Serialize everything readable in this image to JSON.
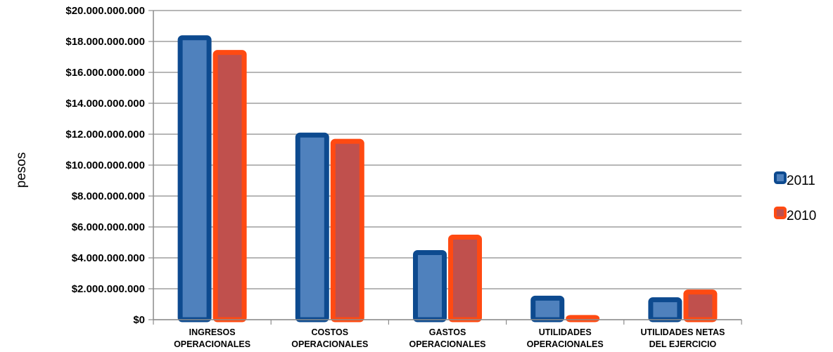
{
  "chart_data": {
    "type": "bar",
    "title": "",
    "xlabel": "",
    "ylabel": "pesos",
    "ylim": [
      0,
      20000000000
    ],
    "y_ticks": [
      "$0",
      "$2.000.000.000",
      "$4.000.000.000",
      "$6.000.000.000",
      "$8.000.000.000",
      "$10.000.000.000",
      "$12.000.000.000",
      "$14.000.000.000",
      "$16.000.000.000",
      "$18.000.000.000",
      "$20.000.000.000"
    ],
    "categories": [
      [
        "INGRESOS",
        "OPERACIONALES"
      ],
      [
        "COSTOS",
        "OPERACIONALES"
      ],
      [
        "GASTOS",
        "OPERACIONALES"
      ],
      [
        "UTILIDADES",
        "OPERACIONALES"
      ],
      [
        "UTILIDADES NETAS",
        "DEL EJERCICIO"
      ]
    ],
    "series": [
      {
        "name": "2011",
        "fill": "#4f81bd",
        "border": "#0d4a8f",
        "values": [
          18400000000,
          12100000000,
          4500000000,
          1550000000,
          1450000000
        ]
      },
      {
        "name": "2010",
        "fill": "#c0504d",
        "border": "#ff4a12",
        "values": [
          17450000000,
          11700000000,
          5500000000,
          300000000,
          1950000000
        ]
      }
    ],
    "grid": true,
    "legend": "right"
  }
}
